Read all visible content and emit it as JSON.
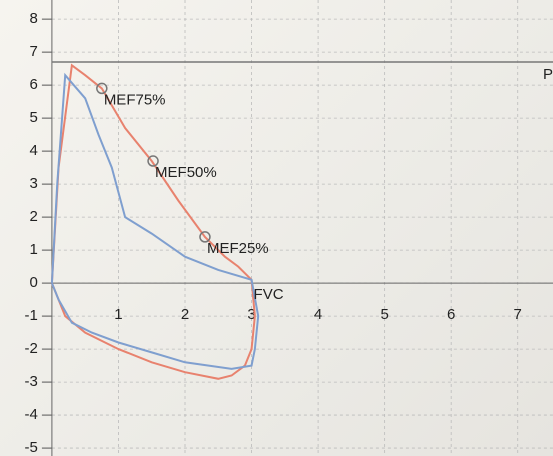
{
  "chart_data": {
    "type": "line",
    "series": [
      {
        "color": "#e8826e",
        "x": [
          0,
          0.1,
          0.3,
          0.5,
          0.75,
          1.1,
          1.5,
          1.9,
          2.3,
          2.6,
          2.8,
          3.0,
          3.05,
          3.0,
          2.9,
          2.7,
          2.5,
          2.0,
          1.5,
          1.0,
          0.5,
          0.2,
          0.1,
          0
        ],
        "values": [
          0,
          3.5,
          6.6,
          6.3,
          5.9,
          4.7,
          3.7,
          2.5,
          1.4,
          0.8,
          0.5,
          0.1,
          -1.0,
          -2.0,
          -2.5,
          -2.8,
          -2.9,
          -2.7,
          -2.4,
          -2.0,
          -1.5,
          -1.0,
          -0.5,
          0
        ]
      },
      {
        "color": "#7f9fcf",
        "x": [
          0,
          0.08,
          0.2,
          0.5,
          0.7,
          0.9,
          1.1,
          1.5,
          2.0,
          2.5,
          3.0,
          3.1,
          3.05,
          3.0,
          2.7,
          2.0,
          1.5,
          1.0,
          0.6,
          0.3,
          0.1,
          0
        ],
        "values": [
          0,
          3.0,
          6.3,
          5.6,
          4.5,
          3.5,
          2.0,
          1.5,
          0.8,
          0.4,
          0.1,
          -1.0,
          -2.0,
          -2.5,
          -2.6,
          -2.4,
          -2.1,
          -1.8,
          -1.5,
          -1.2,
          -0.5,
          0
        ]
      }
    ],
    "annotations": [
      {
        "text": "MEF75%",
        "x": 0.75,
        "y": 5.9,
        "marker": true
      },
      {
        "text": "MEF50%",
        "x": 1.52,
        "y": 3.7,
        "marker": true
      },
      {
        "text": "MEF25%",
        "x": 2.3,
        "y": 1.4,
        "marker": true
      },
      {
        "text": "FVC",
        "x": 3.0,
        "y": 0,
        "marker": false
      }
    ],
    "reference_line": {
      "y": 6.7,
      "label": "P"
    },
    "xlim": [
      -0.78,
      7.53
    ],
    "ylim": [
      -5.24,
      8.58
    ],
    "xticks": [
      1,
      2,
      3,
      4,
      5,
      6,
      7
    ],
    "yticks": [
      -5,
      -4,
      -3,
      -2,
      -1,
      0,
      1,
      2,
      3,
      4,
      5,
      6,
      7,
      8
    ],
    "grid": true
  }
}
